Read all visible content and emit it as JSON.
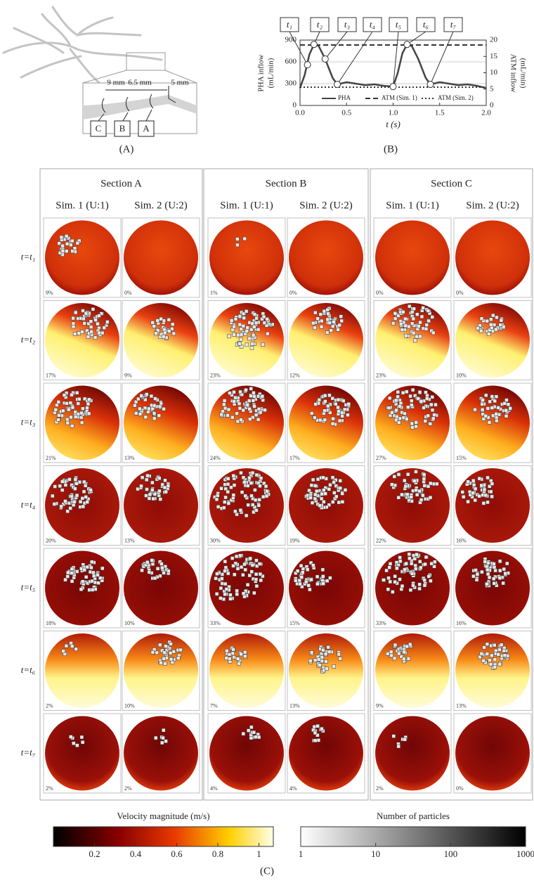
{
  "panel_a": {
    "label": "(A)",
    "distances": [
      "9 mm",
      "6.5 mm",
      "5 mm"
    ],
    "sections": [
      "C",
      "B",
      "A"
    ]
  },
  "chart_data": {
    "type": "line",
    "panel_label": "(B)",
    "xlabel": "t (s)",
    "ylabel": [
      "PHA inflow",
      "(mL/min)"
    ],
    "y2label": [
      "ATM inflow",
      "(mL/min)"
    ],
    "x": [
      0,
      0.05,
      0.1,
      0.15,
      0.2,
      0.27,
      0.35,
      0.4,
      0.5,
      0.6,
      0.7,
      0.8,
      0.9,
      1.0,
      1.05,
      1.1,
      1.15,
      1.2,
      1.27,
      1.35,
      1.4,
      1.5,
      1.6,
      1.7,
      1.8,
      1.9,
      2.0
    ],
    "series": [
      {
        "name": "PHA",
        "color": "#444444",
        "dash": "solid",
        "axis": "y",
        "values": [
          240,
          420,
          700,
          840,
          820,
          640,
          380,
          290,
          320,
          300,
          280,
          290,
          270,
          260,
          450,
          720,
          840,
          820,
          640,
          380,
          290,
          320,
          300,
          280,
          290,
          270,
          240
        ]
      },
      {
        "name": "ATM (Sim. 1)",
        "color": "#333333",
        "dash": "dashed",
        "axis": "y2",
        "values": [
          18.5,
          18.5,
          18.5,
          18.5,
          18.5,
          18.5,
          18.5,
          18.5,
          18.5,
          18.5,
          18.5,
          18.5,
          18.5,
          18.5,
          18.5,
          18.5,
          18.5,
          18.5,
          18.5,
          18.5,
          18.5,
          18.5,
          18.5,
          18.5,
          18.5,
          18.5,
          18.5
        ]
      },
      {
        "name": "ATM (Sim. 2)",
        "color": "#333333",
        "dash": "dotted",
        "axis": "y2",
        "values": [
          5.6,
          5.6,
          5.6,
          5.6,
          5.6,
          5.6,
          5.6,
          5.6,
          5.6,
          5.6,
          5.6,
          5.6,
          5.6,
          5.6,
          5.6,
          5.6,
          5.6,
          5.6,
          5.6,
          5.6,
          5.6,
          5.6,
          5.6,
          5.6,
          5.6,
          5.6,
          5.6
        ]
      }
    ],
    "markers": {
      "labels": [
        "t₁",
        "t₂",
        "t₃",
        "t₄",
        "t₅",
        "t₆",
        "t₇"
      ],
      "x": [
        0.08,
        0.15,
        0.27,
        0.4,
        1.0,
        1.15,
        1.4
      ],
      "values": [
        560,
        840,
        640,
        290,
        260,
        840,
        290
      ]
    },
    "xlim": [
      0,
      2
    ],
    "xticks": [
      {
        "value": 0,
        "label": "0.0"
      },
      0.5,
      {
        "value": 1,
        "label": "1.0"
      },
      1.5,
      {
        "value": 2,
        "label": "2.0"
      }
    ],
    "ylim": [
      0,
      900
    ],
    "yticks": [
      0,
      300,
      600,
      900
    ],
    "y2lim": [
      0,
      20
    ],
    "y2ticks": [
      0,
      5,
      10,
      15,
      20
    ],
    "grid": true
  },
  "panel_c": {
    "label": "(C)",
    "sections": [
      {
        "title": "Section A",
        "sims": [
          "Sim. 1 (U:1)",
          "Sim. 2 (U:2)"
        ]
      },
      {
        "title": "Section B",
        "sims": [
          "Sim. 1 (U:1)",
          "Sim. 2 (U:2)"
        ]
      },
      {
        "title": "Section C",
        "sims": [
          "Sim. 1 (U:1)",
          "Sim. 2 (U:2)"
        ]
      }
    ],
    "rows": [
      "t=t₁",
      "t=t₂",
      "t=t₃",
      "t=t₄",
      "t=t₅",
      "t=t₆",
      "t=t₇"
    ],
    "percentages": [
      [
        "9%",
        "0%",
        "1%",
        "0%",
        "0%",
        "0%"
      ],
      [
        "17%",
        "9%",
        "23%",
        "12%",
        "23%",
        "10%"
      ],
      [
        "21%",
        "13%",
        "24%",
        "17%",
        "27%",
        "15%"
      ],
      [
        "20%",
        "13%",
        "30%",
        "19%",
        "22%",
        "16%"
      ],
      [
        "18%",
        "10%",
        "33%",
        "15%",
        "33%",
        "16%"
      ],
      [
        "2%",
        "10%",
        "7%",
        "13%",
        "9%",
        "13%"
      ],
      [
        "2%",
        "2%",
        "4%",
        "4%",
        "2%",
        "0%"
      ]
    ]
  },
  "colorbars": [
    {
      "title": "Velocity magnitude (m/s)",
      "lim": [
        0,
        1.07
      ],
      "ticks": [
        0.2,
        0.4,
        0.6,
        0.8,
        1
      ],
      "log": false
    },
    {
      "title": "Number of particles",
      "lim": [
        1,
        1000
      ],
      "ticks": [
        1,
        10,
        100,
        1000
      ],
      "log": true
    }
  ]
}
